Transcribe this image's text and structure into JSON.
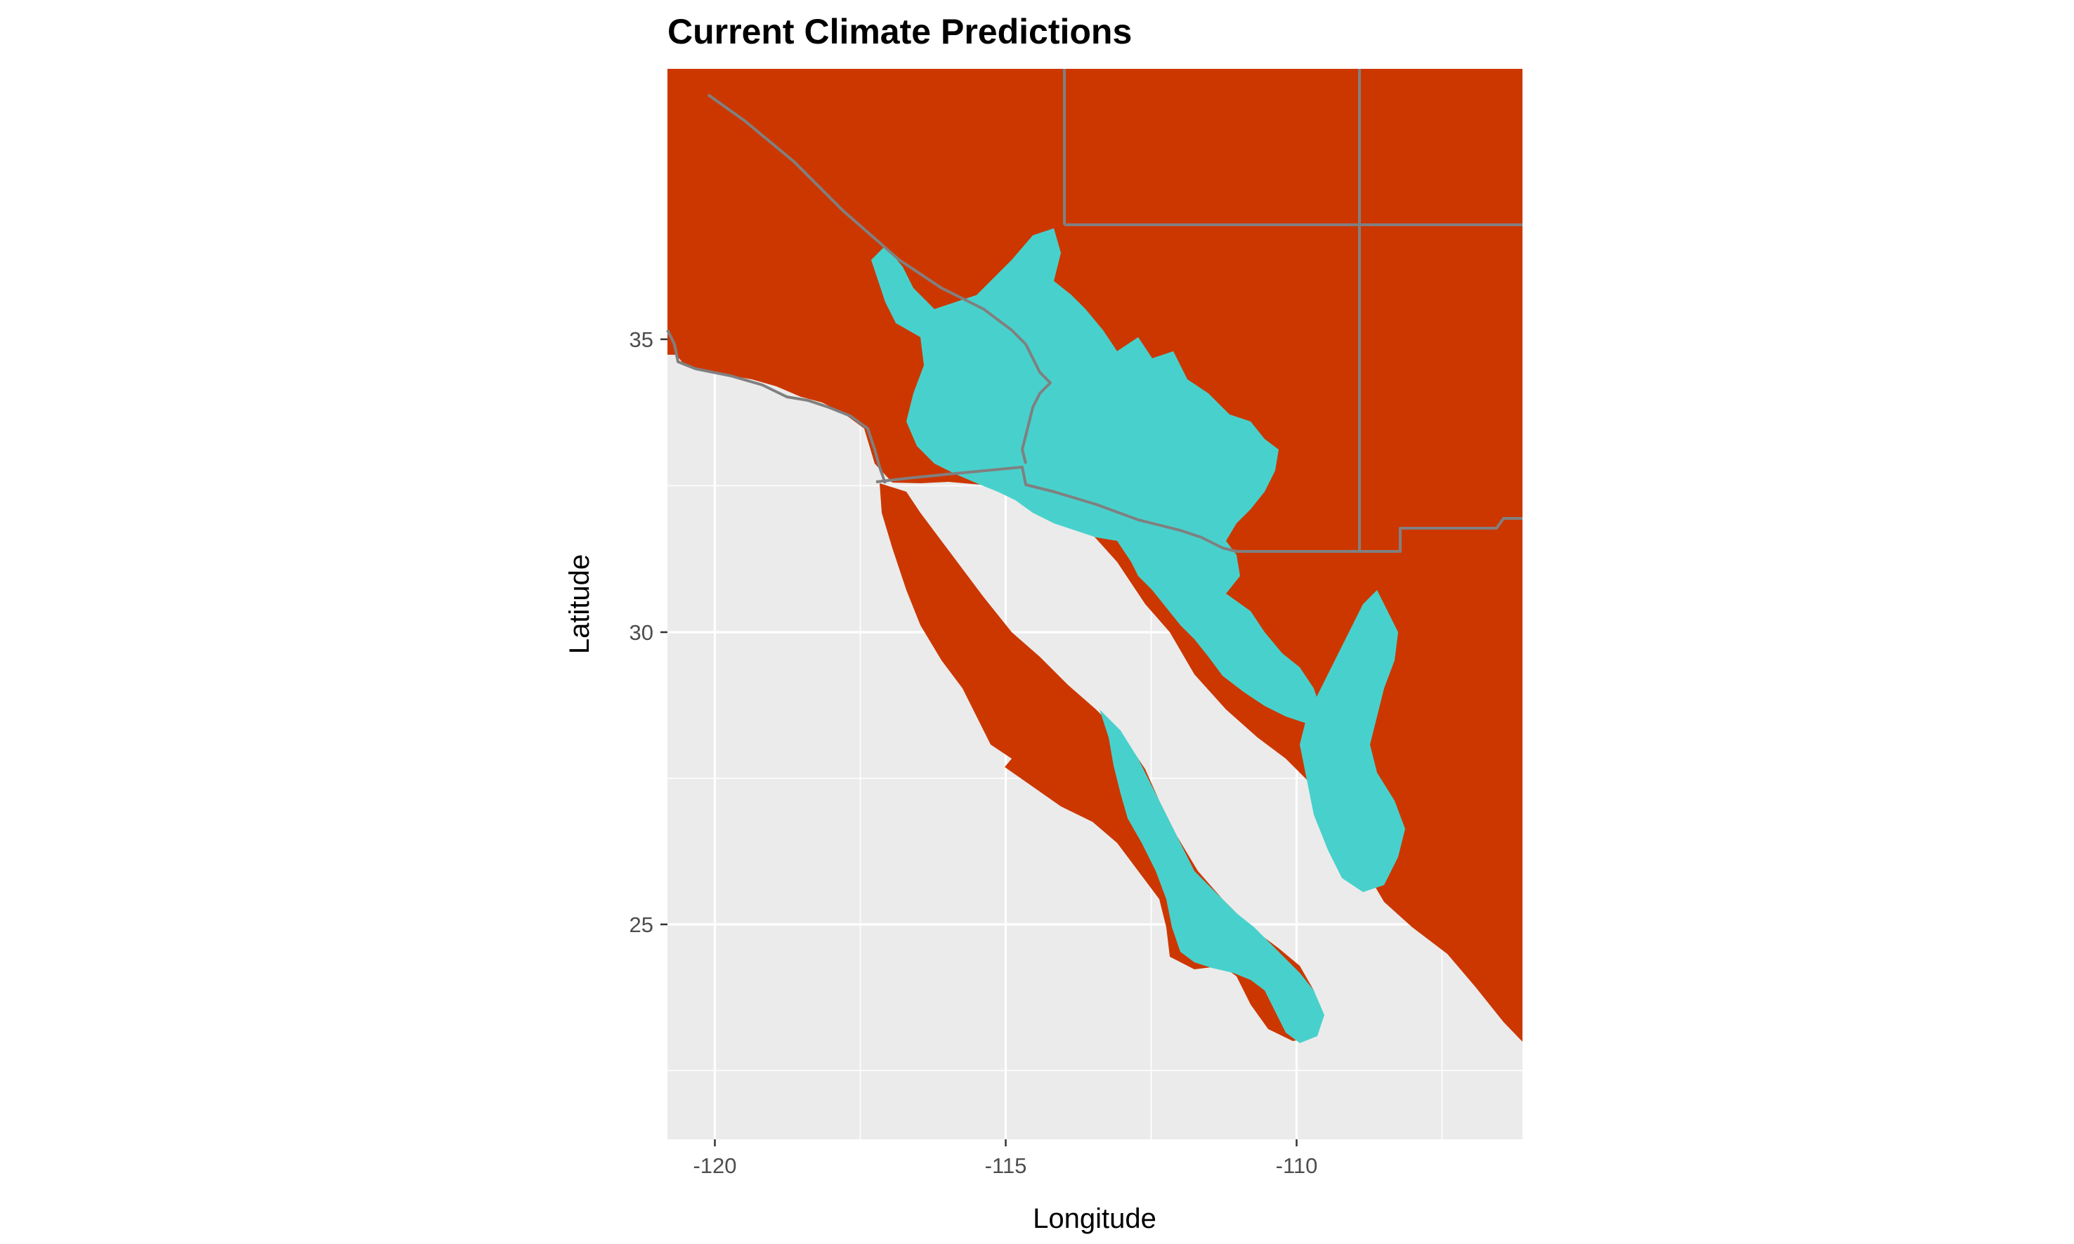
{
  "title": "Current Climate Predictions",
  "x_axis": {
    "label": "Longitude",
    "range": [
      -120.8,
      -106.1
    ],
    "major_ticks": [
      -120,
      -115,
      -110
    ],
    "tick_labels": [
      "-120",
      "-115",
      "-110"
    ],
    "minor_ticks": [
      -117.5,
      -112.5,
      -107.5
    ]
  },
  "y_axis": {
    "label": "Latitude",
    "range": [
      21.4,
      39.7
    ],
    "major_ticks": [
      25,
      30,
      35
    ],
    "tick_labels": [
      "25",
      "30",
      "35"
    ],
    "minor_ticks": [
      22.5,
      27.5,
      32.5
    ]
  },
  "colors": {
    "panel_background": "#ebebeb",
    "unsuitable": "#cc3700",
    "suitable": "#48d1cc",
    "gridline": "#ffffff",
    "border": "#808080"
  },
  "legend": "none",
  "map_data": {
    "type": "raster",
    "region": "Southwestern United States and northwestern Mexico",
    "classes": [
      {
        "key": "unsuitable",
        "color": "#cc3700"
      },
      {
        "key": "suitable",
        "color": "#48d1cc"
      }
    ]
  }
}
